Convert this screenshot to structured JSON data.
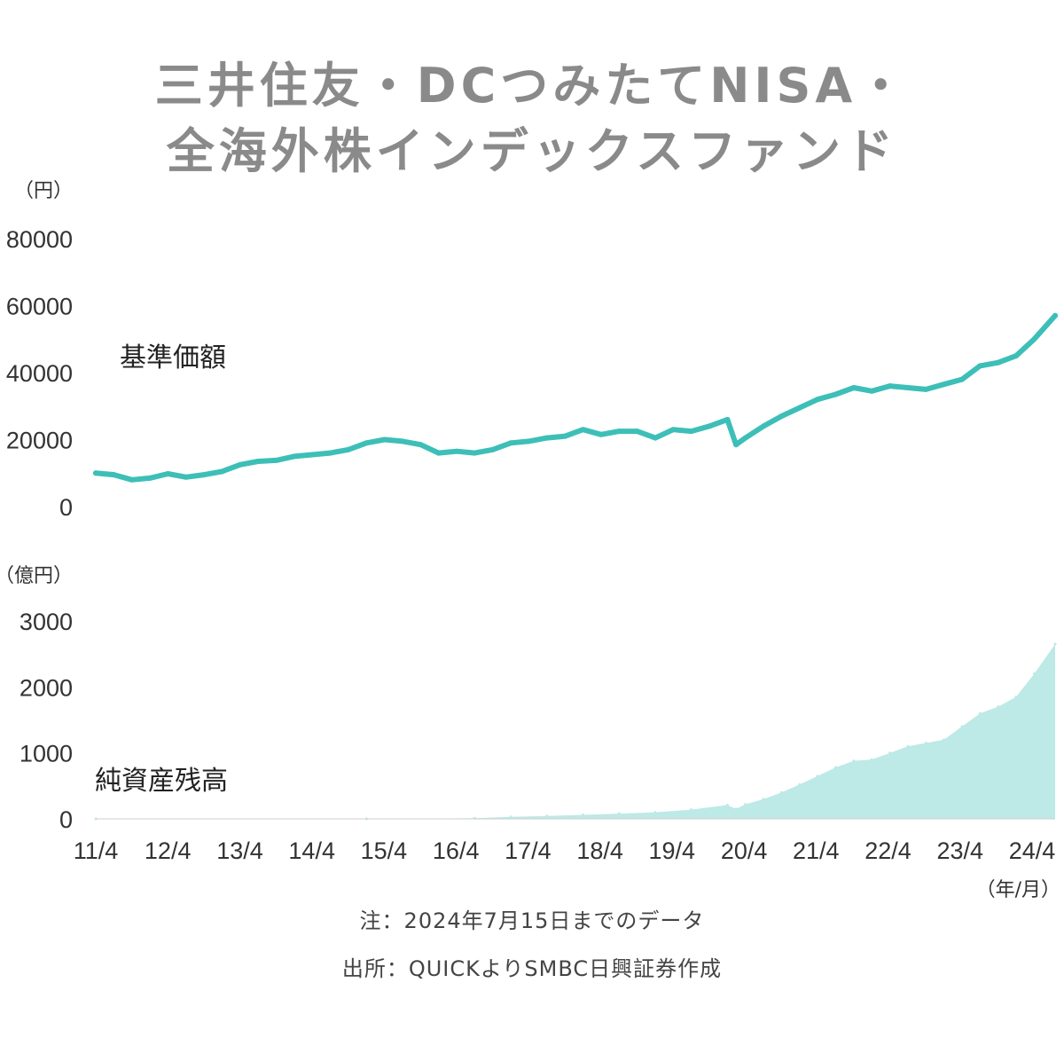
{
  "title_line1": "三井住友・DCつみたてNISA・",
  "title_line2": "全海外株インデックスファンド",
  "note": "注：2024年7月15日までのデータ",
  "source": "出所：QUICKよりSMBC日興証券作成",
  "colors": {
    "line": "#3dbfb8",
    "area": "#bde9e6",
    "axis_text": "#333333",
    "title": "#8a8a8a"
  },
  "chart_data": [
    {
      "type": "line",
      "title": "",
      "series": [
        {
          "name": "基準価額"
        }
      ],
      "y_unit": "（円）",
      "ylim": [
        0,
        80000
      ],
      "y_ticks": [
        0,
        20000,
        40000,
        60000,
        80000
      ],
      "x_ticks": [
        "11/4",
        "12/4",
        "13/4",
        "14/4",
        "15/4",
        "16/4",
        "17/4",
        "18/4",
        "19/4",
        "20/4",
        "21/4",
        "22/4",
        "23/4",
        "24/4"
      ],
      "x": [
        2011.25,
        2011.5,
        2011.75,
        2012.0,
        2012.25,
        2012.5,
        2012.75,
        2013.0,
        2013.25,
        2013.5,
        2013.75,
        2014.0,
        2014.25,
        2014.5,
        2014.75,
        2015.0,
        2015.25,
        2015.5,
        2015.75,
        2016.0,
        2016.25,
        2016.5,
        2016.75,
        2017.0,
        2017.25,
        2017.5,
        2017.75,
        2018.0,
        2018.25,
        2018.5,
        2018.75,
        2019.0,
        2019.25,
        2019.5,
        2019.75,
        2020.0,
        2020.12,
        2020.25,
        2020.5,
        2020.75,
        2021.0,
        2021.25,
        2021.5,
        2021.75,
        2022.0,
        2022.25,
        2022.5,
        2022.75,
        2023.0,
        2023.25,
        2023.5,
        2023.75,
        2024.0,
        2024.25,
        2024.54
      ],
      "values": [
        10000,
        9500,
        8000,
        8500,
        9800,
        8800,
        9500,
        10500,
        12500,
        13500,
        13800,
        15000,
        15500,
        16000,
        17000,
        19000,
        20000,
        19500,
        18500,
        16000,
        16500,
        16000,
        17000,
        19000,
        19500,
        20500,
        21000,
        23000,
        21500,
        22500,
        22500,
        20500,
        23000,
        22500,
        24000,
        26000,
        18500,
        20500,
        24000,
        27000,
        29500,
        32000,
        33500,
        35500,
        34500,
        36000,
        35500,
        35000,
        36500,
        38000,
        42000,
        43000,
        45000,
        50000,
        57000
      ],
      "series_label": "基準価額"
    },
    {
      "type": "area",
      "title": "",
      "series": [
        {
          "name": "純資産残高"
        }
      ],
      "y_unit": "（億円）",
      "ylim": [
        0,
        3000
      ],
      "y_ticks": [
        0,
        1000,
        2000,
        3000
      ],
      "x_ticks": [
        "11/4",
        "12/4",
        "13/4",
        "14/4",
        "15/4",
        "16/4",
        "17/4",
        "18/4",
        "19/4",
        "20/4",
        "21/4",
        "22/4",
        "23/4",
        "24/4"
      ],
      "x_unit": "（年/月）",
      "x": [
        2011.25,
        2015.0,
        2016.5,
        2017.0,
        2017.5,
        2018.0,
        2018.5,
        2019.0,
        2019.5,
        2020.0,
        2020.12,
        2020.25,
        2020.5,
        2020.75,
        2021.0,
        2021.25,
        2021.5,
        2021.75,
        2022.0,
        2022.25,
        2022.5,
        2022.75,
        2023.0,
        2023.25,
        2023.5,
        2023.75,
        2024.0,
        2024.25,
        2024.54
      ],
      "values": [
        0,
        0,
        10,
        30,
        45,
        60,
        80,
        100,
        140,
        210,
        150,
        220,
        300,
        400,
        520,
        650,
        780,
        880,
        900,
        1000,
        1100,
        1150,
        1200,
        1400,
        1600,
        1700,
        1850,
        2200,
        2650
      ],
      "series_label": "純資産残高"
    }
  ]
}
